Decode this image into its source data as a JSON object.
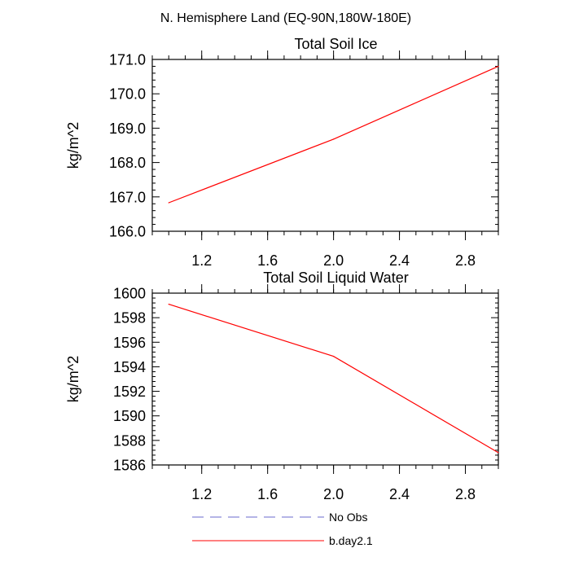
{
  "figure": {
    "main_title": "N. Hemisphere Land (EQ-90N,180W-180E)"
  },
  "chart_data": [
    {
      "type": "line",
      "title": "Total Soil Ice",
      "xlabel": "",
      "ylabel": "kg/m^2",
      "xlim": [
        0.9,
        3.0
      ],
      "ylim": [
        166.0,
        171.0
      ],
      "xticks": [
        1.2,
        1.6,
        2.0,
        2.4,
        2.8
      ],
      "xtick_labels": [
        "1.2",
        "1.6",
        "2.0",
        "2.4",
        "2.8"
      ],
      "yticks": [
        166.0,
        167.0,
        168.0,
        169.0,
        170.0,
        171.0
      ],
      "ytick_labels": [
        "166.0",
        "167.0",
        "168.0",
        "169.0",
        "170.0",
        "171.0"
      ],
      "series": [
        {
          "name": "b.day2.1",
          "color": "#ff0000",
          "x": [
            1.0,
            2.0,
            3.0
          ],
          "values": [
            166.83,
            168.68,
            170.8
          ]
        }
      ]
    },
    {
      "type": "line",
      "title": "Total Soil Liquid Water",
      "xlabel": "",
      "ylabel": "kg/m^2",
      "xlim": [
        0.9,
        3.0
      ],
      "ylim": [
        1586,
        1600
      ],
      "xticks": [
        1.2,
        1.6,
        2.0,
        2.4,
        2.8
      ],
      "xtick_labels": [
        "1.2",
        "1.6",
        "2.0",
        "2.4",
        "2.8"
      ],
      "yticks": [
        1586,
        1588,
        1590,
        1592,
        1594,
        1596,
        1598,
        1600
      ],
      "ytick_labels": [
        "1586",
        "1588",
        "1590",
        "1592",
        "1594",
        "1596",
        "1598",
        "1600"
      ],
      "series": [
        {
          "name": "b.day2.1",
          "color": "#ff0000",
          "x": [
            1.0,
            2.0,
            3.0
          ],
          "values": [
            1599.1,
            1594.85,
            1587.0
          ]
        }
      ]
    }
  ],
  "legend": [
    {
      "label": "No Obs",
      "color": "#6a6acd",
      "style": "dashed"
    },
    {
      "label": "b.day2.1",
      "color": "#ff0000",
      "style": "solid"
    }
  ]
}
